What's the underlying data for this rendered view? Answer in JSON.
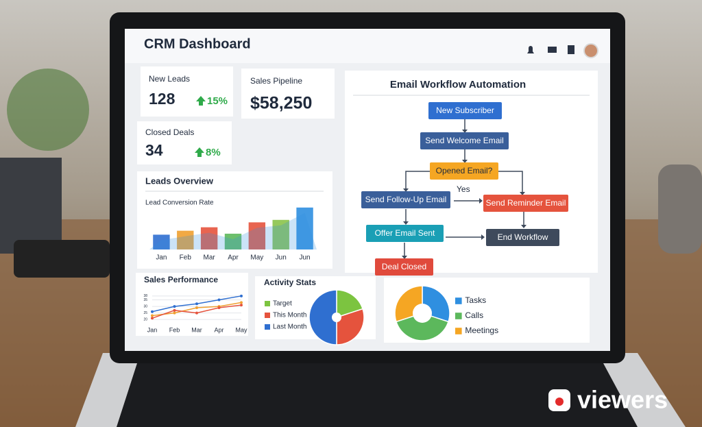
{
  "header": {
    "title": "CRM Dashboard"
  },
  "kpis": [
    {
      "label": "New Leads",
      "value": "128",
      "change": "15%"
    },
    {
      "label": "Sales Pipeline",
      "value": "$58,250"
    },
    {
      "label": "Closed Deals",
      "value": "34",
      "change": "8%"
    }
  ],
  "workflow": {
    "title": "Email Workflow Automation",
    "nodes": [
      {
        "label": "New Subscriber",
        "color": "#2f6fd0"
      },
      {
        "label": "Send Welcome Email",
        "color": "#3a5f9a"
      },
      {
        "label": "Opened Email?",
        "color": "#f5a623"
      },
      {
        "label": "Send Follow-Up Email",
        "color": "#3a5f9a"
      },
      {
        "label": "Send Reminder Email",
        "color": "#e5533d"
      },
      {
        "label": "Offer Email Sent",
        "color": "#1a9fb5"
      },
      {
        "label": "End Workflow",
        "color": "#3e4a5c"
      },
      {
        "label": "Deal Closed",
        "color": "#e04a3c"
      }
    ],
    "edge_label": "Yes"
  },
  "leads_overview": {
    "type": "bar",
    "title": "Leads Overview",
    "subtitle": "Lead Conversion Rate",
    "categories": [
      "Jan",
      "Feb",
      "Mar",
      "Apr",
      "May",
      "Jun",
      "Jun"
    ],
    "values": [
      30,
      38,
      45,
      32,
      55,
      60,
      85
    ],
    "colors": [
      "#2f6fd0",
      "#f0a030",
      "#e5533d",
      "#5cb85c",
      "#e5533d",
      "#8bc34a",
      "#2f8fe0"
    ],
    "ylim": [
      0,
      100
    ]
  },
  "sales_performance": {
    "type": "line",
    "title": "Sales Performance",
    "categories": [
      "Jan",
      "Feb",
      "Mar",
      "Apr",
      "May"
    ],
    "series": [
      {
        "color": "#2f6fd0",
        "values": [
          26,
          30,
          32,
          35,
          38
        ]
      },
      {
        "color": "#f0a030",
        "values": [
          23,
          25,
          29,
          30,
          33
        ]
      },
      {
        "color": "#e5533d",
        "values": [
          21,
          27,
          25,
          29,
          31
        ]
      }
    ],
    "ylim": [
      18,
      40
    ],
    "yticks": [
      20,
      25,
      30,
      35,
      38
    ]
  },
  "activity_stats": {
    "type": "pie",
    "title": "Activity Stats",
    "categories": [
      "Target",
      "This Month",
      "Last Month"
    ],
    "values": [
      20,
      30,
      50
    ],
    "colors": [
      "#7cc440",
      "#e5533d",
      "#2f6fd0"
    ]
  },
  "activity_breakdown": {
    "type": "pie",
    "categories": [
      "Tasks",
      "Calls",
      "Meetings"
    ],
    "values": [
      30,
      40,
      30
    ],
    "colors": [
      "#2f8fe0",
      "#5cb85c",
      "#f5a623"
    ]
  },
  "watermark": "viewers"
}
